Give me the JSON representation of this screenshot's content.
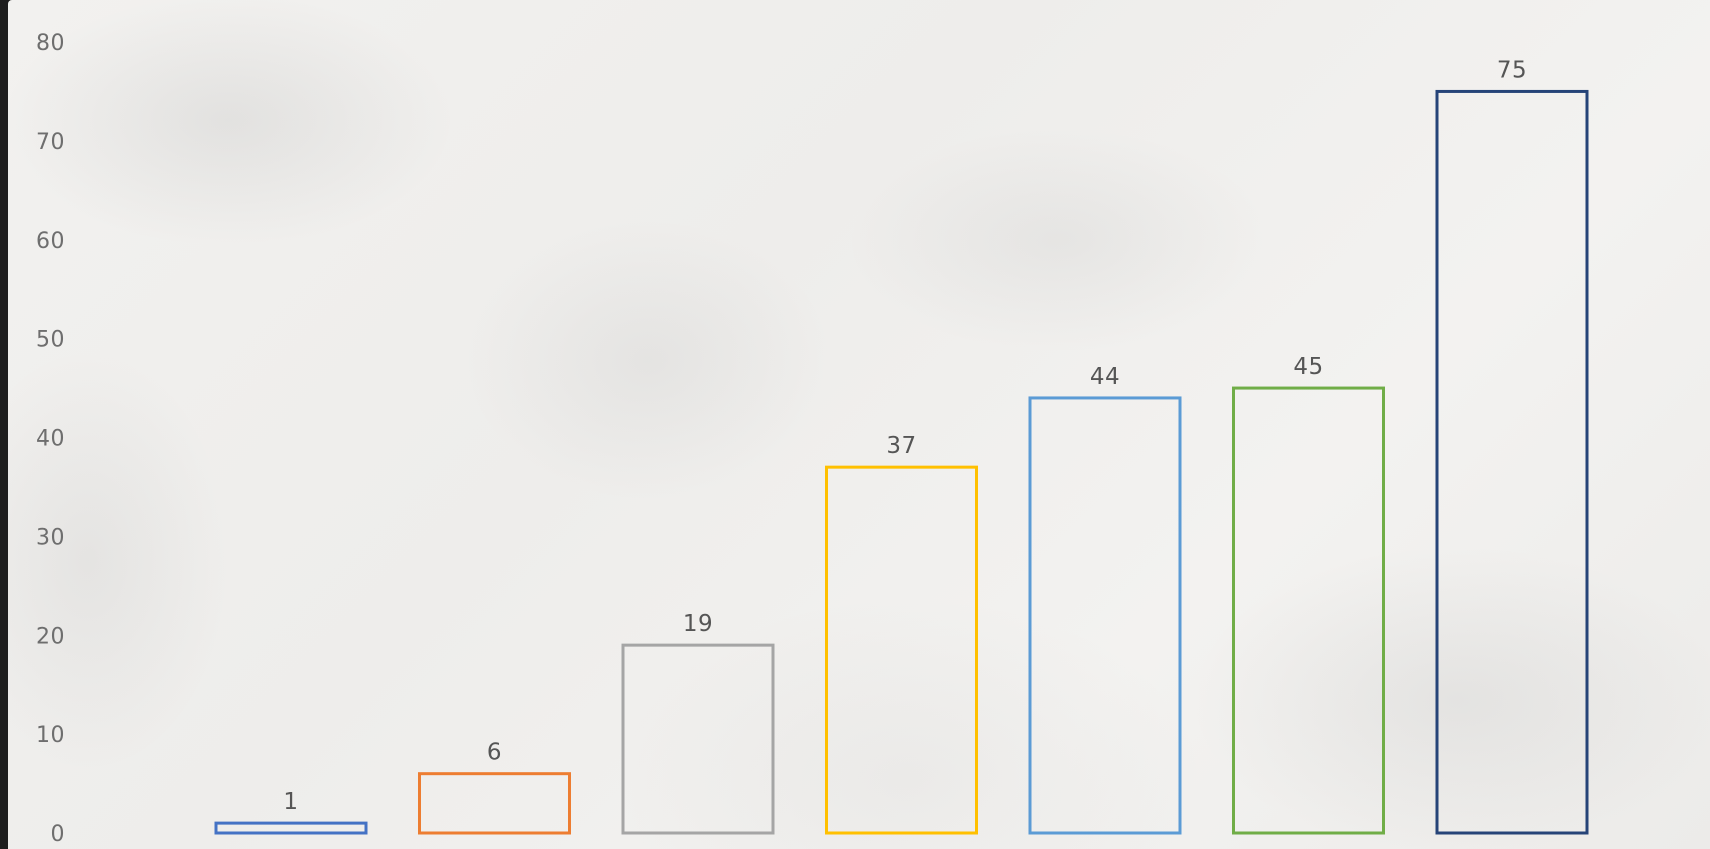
{
  "chart_data": {
    "type": "bar",
    "title": "",
    "xlabel": "",
    "ylabel": "",
    "ylim": [
      0,
      80
    ],
    "yticks": [
      0,
      10,
      20,
      30,
      40,
      50,
      60,
      70,
      80
    ],
    "grid": false,
    "legend": "none",
    "bar_style": "outline",
    "values": [
      1,
      6,
      19,
      37,
      44,
      45,
      75
    ],
    "data_labels": [
      "1",
      "6",
      "19",
      "37",
      "44",
      "45",
      "75"
    ],
    "colors": [
      "#4472C4",
      "#ED7D31",
      "#A5A5A5",
      "#FFC000",
      "#5B9BD5",
      "#70AD47",
      "#264478"
    ]
  }
}
